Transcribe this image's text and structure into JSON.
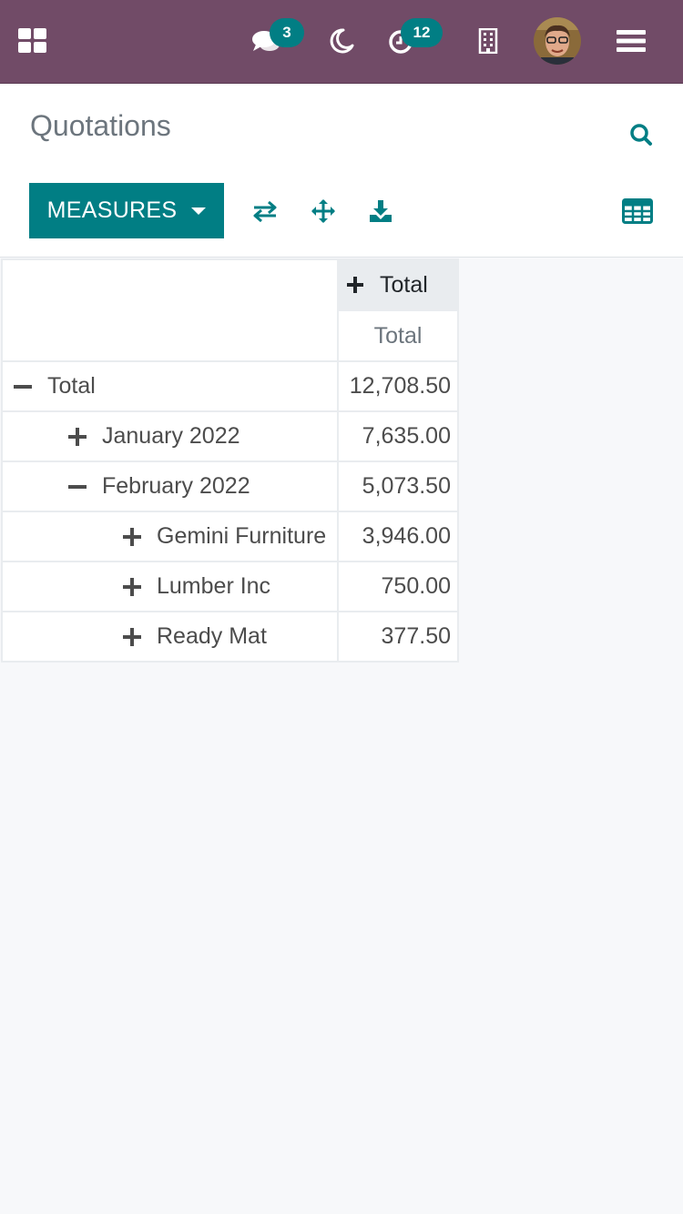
{
  "navbar": {
    "apps_icon": "apps-grid-icon",
    "chat_icon": "comments-icon",
    "chat_count": "3",
    "theme_icon": "moon-icon",
    "activity_icon": "clock-icon",
    "activity_count": "12",
    "company_icon": "building-icon",
    "user_avatar": "user-avatar",
    "menu_icon": "hamburger-menu-icon"
  },
  "control_panel": {
    "title": "Quotations",
    "search_icon": "search-icon",
    "measures_label": "MEASURES",
    "tools": [
      "flip-axis-icon",
      "expand-all-icon",
      "download-icon"
    ],
    "view_icon": "table-view-icon"
  },
  "pivot": {
    "column_header": "Total",
    "measure": "Total",
    "rows": [
      {
        "label": "Total",
        "value": "12,708.50",
        "level": 0,
        "expanded": true
      },
      {
        "label": "January 2022",
        "value": "7,635.00",
        "level": 1,
        "expanded": false
      },
      {
        "label": "February 2022",
        "value": "5,073.50",
        "level": 1,
        "expanded": true
      },
      {
        "label": "Gemini Furniture",
        "value": "3,946.00",
        "level": 2,
        "expanded": false
      },
      {
        "label": "Lumber Inc",
        "value": "750.00",
        "level": 2,
        "expanded": false
      },
      {
        "label": "Ready Mat",
        "value": "377.50",
        "level": 2,
        "expanded": false
      }
    ]
  },
  "colors": {
    "navbar": "#714b67",
    "accent": "#017e84",
    "background": "#f7f8fa"
  }
}
